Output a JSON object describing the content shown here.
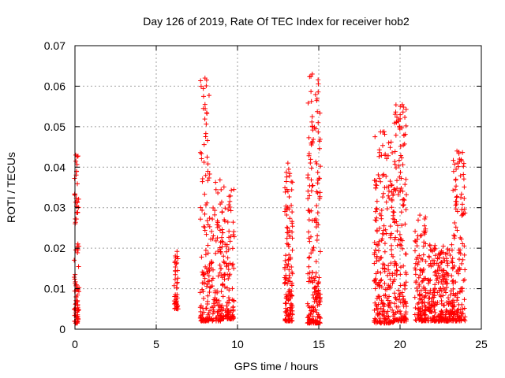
{
  "chart_data": {
    "type": "scatter",
    "title": "Day 126 of 2019, Rate Of TEC Index for receiver hob2",
    "xlabel": "GPS time / hours",
    "ylabel": "ROTI / TECUs",
    "xlim": [
      0,
      25
    ],
    "ylim": [
      0,
      0.07
    ],
    "xticks": [
      "0",
      "5",
      "10",
      "15",
      "20",
      "25"
    ],
    "yticks": [
      "0",
      "0.01",
      "0.02",
      "0.03",
      "0.04",
      "0.05",
      "0.06",
      "0.07"
    ],
    "grid": true,
    "marker": "+",
    "color": "#ff0000",
    "series": [
      {
        "name": "ROTI",
        "clusters": [
          {
            "x": [
              -0.05,
              0.25
            ],
            "ymin": 0.0015,
            "ymax": 0.043,
            "n": 90
          },
          {
            "x": [
              6.1,
              6.35
            ],
            "ymin": 0.005,
            "ymax": 0.0195,
            "n": 45
          },
          {
            "x": [
              7.7,
              8.3
            ],
            "ymin": 0.002,
            "ymax": 0.0625,
            "n": 120
          },
          {
            "x": [
              8.3,
              9.0
            ],
            "ymin": 0.002,
            "ymax": 0.037,
            "n": 90
          },
          {
            "x": [
              9.0,
              9.8
            ],
            "ymin": 0.0025,
            "ymax": 0.0375,
            "n": 130
          },
          {
            "x": [
              12.9,
              13.4
            ],
            "ymin": 0.002,
            "ymax": 0.041,
            "n": 140
          },
          {
            "x": [
              14.3,
              15.1
            ],
            "ymin": 0.0015,
            "ymax": 0.063,
            "n": 200
          },
          {
            "x": [
              18.4,
              19.6
            ],
            "ymin": 0.0015,
            "ymax": 0.049,
            "n": 230
          },
          {
            "x": [
              19.6,
              20.4
            ],
            "ymin": 0.002,
            "ymax": 0.0555,
            "n": 170
          },
          {
            "x": [
              20.9,
              21.6
            ],
            "ymin": 0.002,
            "ymax": 0.0295,
            "n": 130
          },
          {
            "x": [
              21.7,
              22.4
            ],
            "ymin": 0.002,
            "ymax": 0.021,
            "n": 110
          },
          {
            "x": [
              22.4,
              23.3
            ],
            "ymin": 0.002,
            "ymax": 0.021,
            "n": 150
          },
          {
            "x": [
              23.2,
              24.0
            ],
            "ymin": 0.002,
            "ymax": 0.044,
            "n": 140
          }
        ],
        "outliers": [
          [
            8.0,
            0.062
          ],
          [
            8.1,
            0.0615
          ],
          [
            7.9,
            0.0545
          ],
          [
            8.0,
            0.0555
          ],
          [
            14.6,
            0.063
          ],
          [
            14.6,
            0.05
          ],
          [
            14.55,
            0.0455
          ],
          [
            18.8,
            0.0487
          ],
          [
            19.3,
            0.046
          ],
          [
            19.45,
            0.0462
          ],
          [
            19.75,
            0.0554
          ],
          [
            23.5,
            0.044
          ],
          [
            23.55,
            0.041
          ],
          [
            23.45,
            0.0395
          ],
          [
            23.9,
            0.0402
          ],
          [
            13.1,
            0.041
          ],
          [
            13.15,
            0.0395
          ],
          [
            0.05,
            0.043
          ],
          [
            0.1,
            0.039
          ]
        ]
      }
    ]
  }
}
